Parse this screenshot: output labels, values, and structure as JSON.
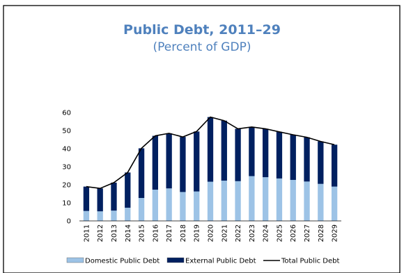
{
  "chart_data": {
    "type": "bar",
    "stacked": true,
    "title": "Public Debt, 2011–29",
    "subtitle": "(Percent of GDP)",
    "categories": [
      "2011",
      "2012",
      "2013",
      "2014",
      "2015",
      "2016",
      "2017",
      "2018",
      "2019",
      "2020",
      "2021",
      "2022",
      "2023",
      "2024",
      "2025",
      "2026",
      "2027",
      "2028",
      "2029"
    ],
    "series": [
      {
        "name": "Domestic Public Debt",
        "type": "bar",
        "color": "#9dc3e6",
        "values": [
          5.5,
          5.3,
          5.7,
          7.3,
          12.7,
          17.3,
          18.0,
          16.0,
          16.3,
          21.7,
          22.3,
          22.0,
          24.8,
          24.2,
          23.5,
          22.7,
          21.8,
          20.5,
          19.0
        ]
      },
      {
        "name": "External Public Debt",
        "type": "bar",
        "color": "#002060",
        "values": [
          13.5,
          12.7,
          15.5,
          19.5,
          27.5,
          29.8,
          30.5,
          30.5,
          33.2,
          35.8,
          33.2,
          29.0,
          27.2,
          26.8,
          25.8,
          25.0,
          24.5,
          23.5,
          23.2
        ]
      },
      {
        "name": "Total Public Debt",
        "type": "line",
        "color": "#000000",
        "values": [
          19.0,
          18.0,
          21.2,
          26.8,
          40.2,
          47.1,
          48.5,
          46.5,
          49.5,
          57.5,
          55.5,
          51.0,
          52.0,
          51.0,
          49.3,
          47.7,
          46.3,
          44.0,
          42.2
        ]
      }
    ],
    "ylim": [
      0,
      60
    ],
    "yticks": [
      0,
      10,
      20,
      30,
      40,
      50,
      60
    ],
    "grid": false,
    "legend": "bottom"
  }
}
